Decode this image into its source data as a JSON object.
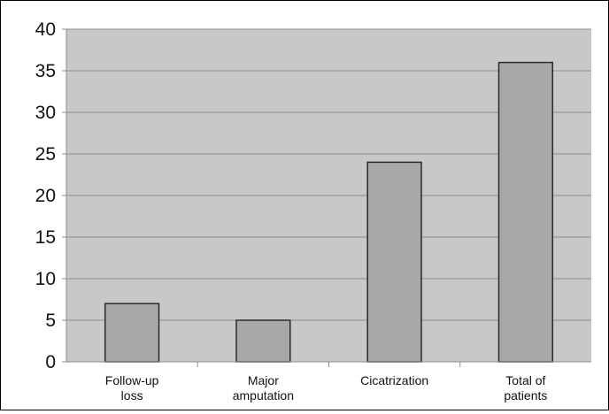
{
  "chart_data": {
    "type": "bar",
    "title": "",
    "xlabel": "",
    "ylabel": "",
    "categories": [
      [
        "Follow-up",
        "loss"
      ],
      [
        "Major",
        "amputation"
      ],
      [
        "Cicatrization"
      ],
      [
        "Total of",
        "patients"
      ]
    ],
    "values": [
      7,
      5,
      24,
      36
    ],
    "ylim": [
      0,
      40
    ],
    "yticks": [
      "0",
      "5",
      "10",
      "15",
      "20",
      "25",
      "30",
      "35",
      "40"
    ],
    "grid": true,
    "legend": "none",
    "colors": {
      "plot_background": "#c8c8c8",
      "bar_fill": "#a8a8a8",
      "bar_stroke": "#2a2a2a",
      "gridline": "#8c8c8c",
      "axis": "#8c8c8c",
      "text": "#111111"
    }
  }
}
